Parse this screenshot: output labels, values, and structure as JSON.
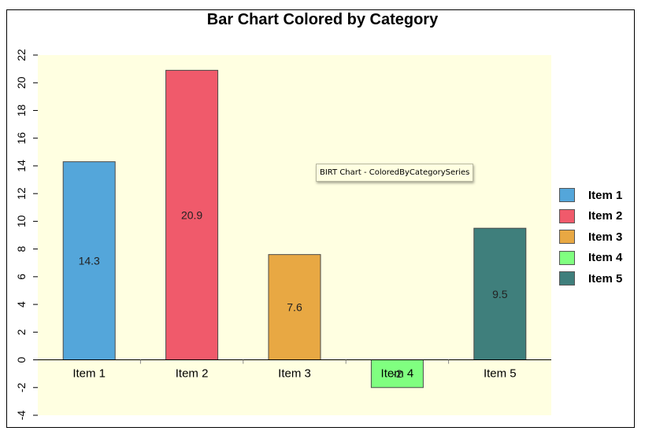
{
  "chart_data": {
    "type": "bar",
    "title": "Bar Chart Colored by Category",
    "xlabel": "",
    "ylabel": "",
    "categories": [
      "Item 1",
      "Item 2",
      "Item 3",
      "Item 4",
      "Item 5"
    ],
    "values": [
      14.3,
      20.9,
      7.6,
      -2,
      9.5
    ],
    "data_labels": [
      "14.3",
      "20.9",
      "7.6",
      "-2",
      "9.5"
    ],
    "colors": [
      "#54a6da",
      "#f05a6b",
      "#e8a843",
      "#80ff80",
      "#3f7f7c"
    ],
    "ylim": [
      -4,
      22
    ],
    "yticks": [
      -4,
      -2,
      0,
      2,
      4,
      6,
      8,
      10,
      12,
      14,
      16,
      18,
      20,
      22
    ],
    "plot_background": "#ffffe1",
    "grid": false,
    "legend": {
      "placement": "right",
      "entries": [
        "Item 1",
        "Item 2",
        "Item 3",
        "Item 4",
        "Item 5"
      ]
    }
  },
  "tooltip": "BIRT Chart - ColoredByCategorySeries"
}
